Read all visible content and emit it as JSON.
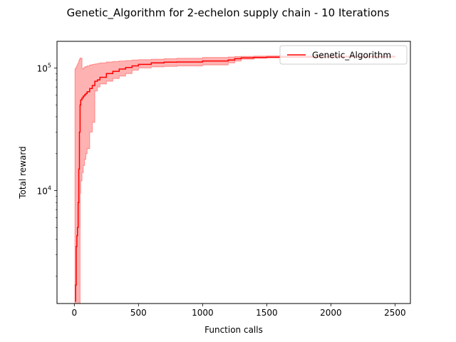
{
  "chart_data": {
    "type": "line",
    "title": "Genetic_Algorithm for 2-echelon supply chain - 10 Iterations",
    "xlabel": "Function calls",
    "ylabel": "Total reward",
    "y_scale": "log",
    "xlim": [
      -135,
      2620
    ],
    "ylim": [
      1200,
      165000
    ],
    "grid": false,
    "legend_position": "upper right",
    "x_ticks": [
      {
        "value": 0,
        "label": "0"
      },
      {
        "value": 500,
        "label": "500"
      },
      {
        "value": 1000,
        "label": "1000"
      },
      {
        "value": 1500,
        "label": "1500"
      },
      {
        "value": 2000,
        "label": "2000"
      },
      {
        "value": 2500,
        "label": "2500"
      }
    ],
    "y_ticks": [
      {
        "value": 10000,
        "base": "10",
        "exp": "4"
      },
      {
        "value": 100000,
        "base": "10",
        "exp": "5"
      }
    ],
    "series": [
      {
        "name": "Genetic_Algorithm",
        "color": "#ff0000",
        "band_color": "#ff0000",
        "band_opacity": 0.3,
        "x": [
          5,
          10,
          15,
          20,
          25,
          30,
          35,
          40,
          45,
          50,
          60,
          70,
          80,
          90,
          100,
          120,
          140,
          160,
          180,
          200,
          250,
          300,
          350,
          400,
          450,
          500,
          600,
          700,
          800,
          1000,
          1200,
          1250,
          1300,
          1400,
          1500,
          1600,
          2000,
          2500
        ],
        "mean": [
          1250,
          1700,
          3500,
          4300,
          5000,
          8000,
          15000,
          30000,
          50000,
          55000,
          57000,
          59000,
          60500,
          62000,
          64000,
          68000,
          72000,
          78000,
          80000,
          84000,
          90000,
          94000,
          98000,
          101000,
          104000,
          107000,
          110000,
          111500,
          112000,
          114000,
          116000,
          119000,
          121000,
          122000,
          122500,
          123000,
          123500,
          124000
        ],
        "lower": [
          1200,
          1200,
          1200,
          1200,
          1200,
          1200,
          1200,
          1200,
          9500,
          12000,
          14000,
          16000,
          18000,
          20000,
          22000,
          30000,
          36000,
          65000,
          70000,
          74000,
          78000,
          82000,
          86000,
          90000,
          96000,
          100000,
          102000,
          103000,
          104000,
          106000,
          110000,
          114000,
          118000,
          120000,
          121000,
          122000,
          122500,
          123000
        ],
        "upper": [
          98000,
          100000,
          102000,
          105000,
          108000,
          110000,
          115000,
          118000,
          121000,
          120000,
          98000,
          100000,
          102000,
          103000,
          104000,
          106000,
          107000,
          108000,
          109000,
          110000,
          112000,
          113000,
          114000,
          115000,
          116000,
          117000,
          118000,
          119000,
          120000,
          122000,
          123000,
          124000,
          124500,
          125000,
          125500,
          126000,
          126500,
          127000
        ]
      }
    ]
  }
}
